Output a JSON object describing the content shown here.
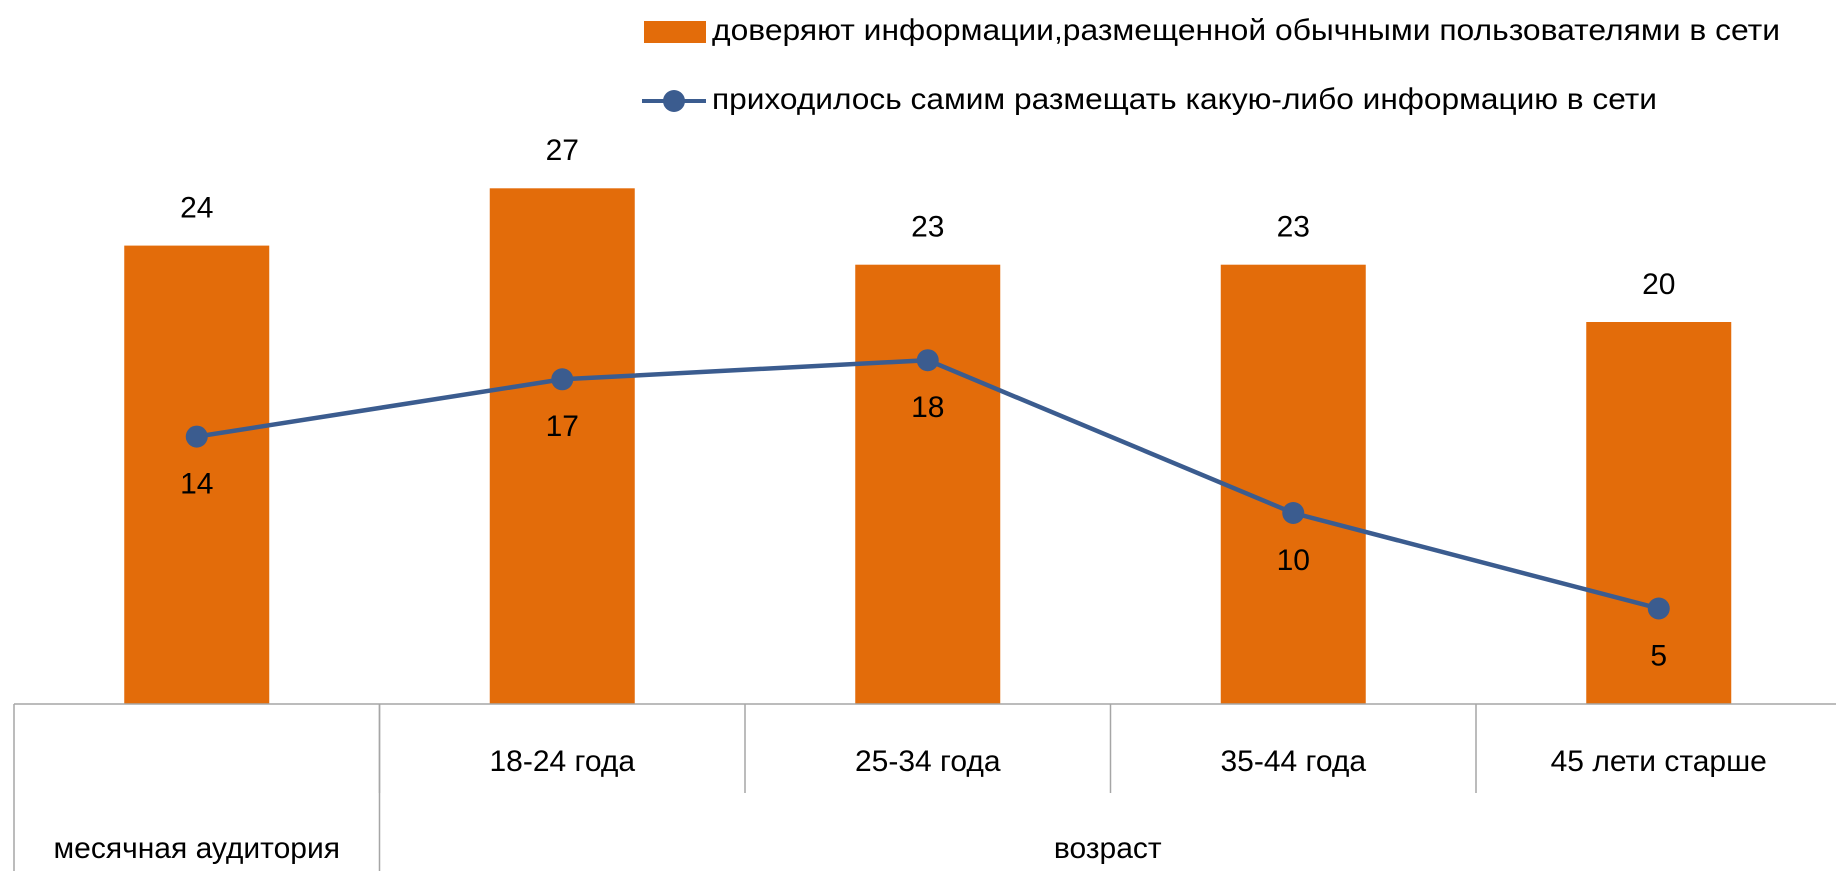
{
  "chart_data": {
    "type": "bar-line",
    "categories": [
      null,
      "18-24 года",
      "25-34 года",
      "35-44 года",
      "45  лети старше"
    ],
    "category_groups": [
      {
        "label": "месячная аудитория",
        "span": 1
      },
      {
        "label": "возраст",
        "span": 4
      }
    ],
    "series": [
      {
        "name": "доверяют информации,размещенной обычными пользователями в сети",
        "type": "bar",
        "color": "#e36c0a",
        "values": [
          24,
          27,
          23,
          23,
          20
        ]
      },
      {
        "name": "приходилось самим размещать какую-либо информацию в сети",
        "type": "line",
        "color": "#3b5c8f",
        "values": [
          14,
          17,
          18,
          10,
          5
        ]
      }
    ],
    "ylim": [
      0,
      30
    ]
  }
}
